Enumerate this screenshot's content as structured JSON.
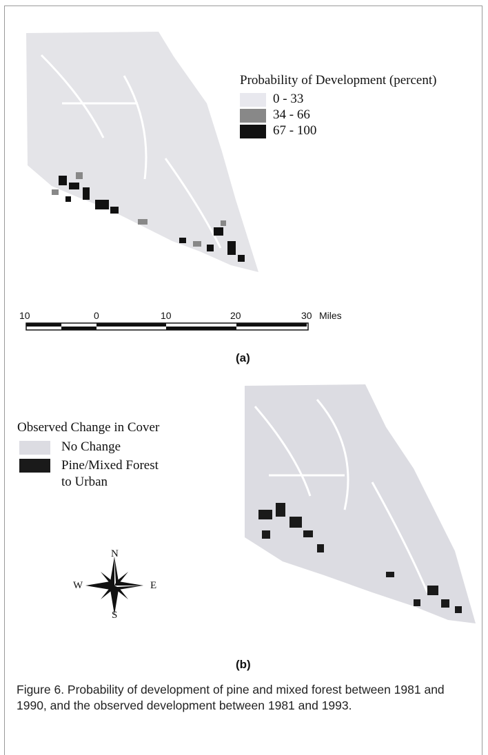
{
  "panel_a": {
    "legend": {
      "title": "Probability of Development (percent)",
      "items": [
        "0 - 33",
        "34 - 66",
        "67 - 100"
      ]
    },
    "scale_bar": {
      "labels": [
        "10",
        "0",
        "10",
        "20",
        "30"
      ],
      "unit": "Miles"
    },
    "label": "(a)"
  },
  "panel_b": {
    "legend": {
      "title": "Observed Change in Cover",
      "items": [
        "No Change",
        "Pine/Mixed Forest to Urban"
      ]
    },
    "compass": {
      "n": "N",
      "s": "S",
      "w": "W",
      "e": "E"
    },
    "label": "(b)"
  },
  "caption": "Figure 6.  Probability of development of pine and mixed forest between 1981 and 1990, and the observed development between 1981 and 1993."
}
